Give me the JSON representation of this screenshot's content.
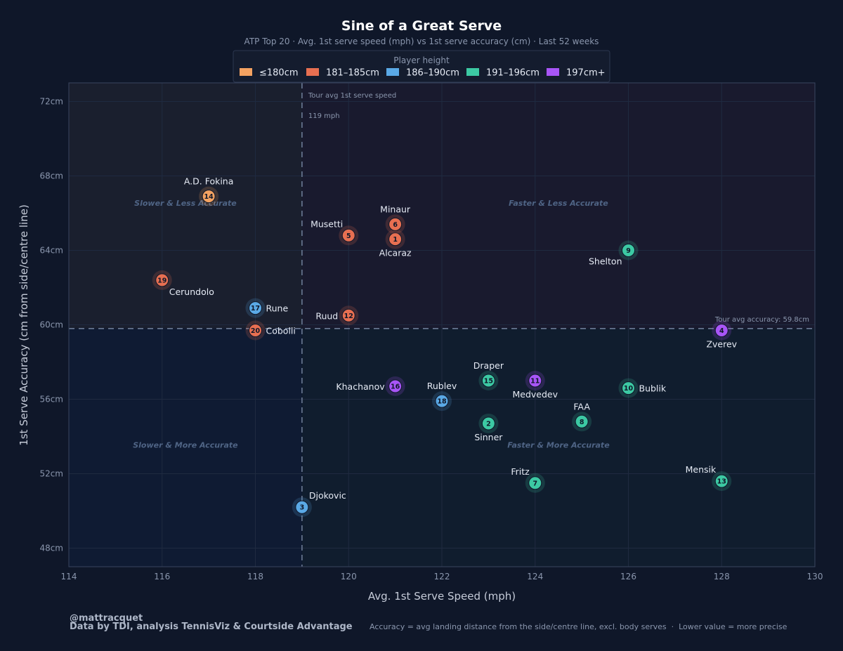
{
  "chart_data": {
    "type": "scatter",
    "title": "Sine of a Great Serve",
    "subtitle": "ATP Top 20 · Avg. 1st serve speed (mph) vs 1st serve accuracy (cm) · Last 52 weeks",
    "xlabel": "Avg. 1st Serve Speed (mph)",
    "ylabel": "1st Serve Accuracy (cm from side/centre line)",
    "xlim": [
      114,
      130
    ],
    "ylim": [
      47,
      73
    ],
    "x_ticks": [
      114,
      116,
      118,
      120,
      122,
      124,
      126,
      128,
      130
    ],
    "y_ticks": [
      48,
      52,
      56,
      60,
      64,
      68,
      72
    ],
    "y_tick_suffix": "cm",
    "grid": true,
    "legend": {
      "title": "Player height",
      "position": "top-center",
      "entries": [
        {
          "label": "≤180cm",
          "color": "#f4a261"
        },
        {
          "label": "181–185cm",
          "color": "#e76f51"
        },
        {
          "label": "186–190cm",
          "color": "#5aa9e6"
        },
        {
          "label": "191–196cm",
          "color": "#3cc9a3"
        },
        {
          "label": "197cm+",
          "color": "#a855f7"
        }
      ]
    },
    "quadrants": [
      {
        "label": "Slower & Less Accurate",
        "x": 116.5,
        "y": 66.4,
        "fill": "#1a1f2e"
      },
      {
        "label": "Faster & Less Accurate",
        "x": 124.5,
        "y": 66.4,
        "fill": "#191a2e"
      },
      {
        "label": "Slower & More Accurate",
        "x": 116.5,
        "y": 53.4,
        "fill": "#0f1b33"
      },
      {
        "label": "Faster & More Accurate",
        "x": 124.5,
        "y": 53.4,
        "fill": "#101d2e"
      }
    ],
    "reference_lines": {
      "x": {
        "value": 119,
        "label_line1": "Tour avg 1st serve speed",
        "label_line2": "119 mph"
      },
      "y": {
        "value": 59.8,
        "label": "Tour avg accuracy: 59.8cm"
      }
    },
    "points": [
      {
        "rank": "1",
        "name": "Alcaraz",
        "x": 121,
        "y": 64.6,
        "group": 1,
        "label_pos": "below"
      },
      {
        "rank": "2",
        "name": "Sinner",
        "x": 123,
        "y": 54.7,
        "group": 3,
        "label_pos": "below"
      },
      {
        "rank": "3",
        "name": "Djokovic",
        "x": 119,
        "y": 50.2,
        "group": 2,
        "label_pos": "upper-right"
      },
      {
        "rank": "4",
        "name": "Zverev",
        "x": 128,
        "y": 59.7,
        "group": 4,
        "label_pos": "below"
      },
      {
        "rank": "5",
        "name": "Musetti",
        "x": 120,
        "y": 64.8,
        "group": 1,
        "label_pos": "upper-left"
      },
      {
        "rank": "6",
        "name": "Minaur",
        "x": 121,
        "y": 65.4,
        "group": 1,
        "label_pos": "above"
      },
      {
        "rank": "7",
        "name": "Fritz",
        "x": 124,
        "y": 51.5,
        "group": 3,
        "label_pos": "upper-left"
      },
      {
        "rank": "8",
        "name": "FAA",
        "x": 125,
        "y": 54.8,
        "group": 3,
        "label_pos": "above"
      },
      {
        "rank": "9",
        "name": "Shelton",
        "x": 126,
        "y": 64.0,
        "group": 3,
        "label_pos": "lower-left"
      },
      {
        "rank": "10",
        "name": "Bublik",
        "x": 126,
        "y": 56.6,
        "group": 3,
        "label_pos": "right"
      },
      {
        "rank": "11",
        "name": "Medvedev",
        "x": 124,
        "y": 57.0,
        "group": 4,
        "label_pos": "below"
      },
      {
        "rank": "12",
        "name": "Ruud",
        "x": 120,
        "y": 60.5,
        "group": 1,
        "label_pos": "left"
      },
      {
        "rank": "13",
        "name": "Mensik",
        "x": 128,
        "y": 51.6,
        "group": 3,
        "label_pos": "upper-left"
      },
      {
        "rank": "14",
        "name": "A.D. Fokina",
        "x": 117,
        "y": 66.9,
        "group": 0,
        "label_pos": "above"
      },
      {
        "rank": "15",
        "name": "Draper",
        "x": 123,
        "y": 57.0,
        "group": 3,
        "label_pos": "above"
      },
      {
        "rank": "16",
        "name": "Khachanov",
        "x": 121,
        "y": 56.7,
        "group": 4,
        "label_pos": "left"
      },
      {
        "rank": "17",
        "name": "Rune",
        "x": 118,
        "y": 60.9,
        "group": 2,
        "label_pos": "right"
      },
      {
        "rank": "18",
        "name": "Rublev",
        "x": 122,
        "y": 55.9,
        "group": 2,
        "label_pos": "above"
      },
      {
        "rank": "19",
        "name": "Cerundolo",
        "x": 116,
        "y": 62.4,
        "group": 1,
        "label_pos": "lower-right"
      },
      {
        "rank": "20",
        "name": "Cobolli",
        "x": 118,
        "y": 59.7,
        "group": 1,
        "label_pos": "right"
      }
    ]
  },
  "footer": {
    "handle": "@mattracquet",
    "credit": "Data by TDI, analysis TennisViz & Courtside Advantage",
    "note": "Accuracy = avg landing distance from the side/centre line, excl. body serves  ·  Lower value = more precise"
  },
  "colors": {
    "background": "#0f1729",
    "plot_border": "#3a4660",
    "grid": "#1f2a40",
    "tick_text": "#8a96ad",
    "title_text": "#ffffff",
    "subtitle_text": "#8a96ad",
    "point_label": "#e6ebf5",
    "quadrant_label": "#4f6485",
    "reference_line": "#6b7a94"
  }
}
